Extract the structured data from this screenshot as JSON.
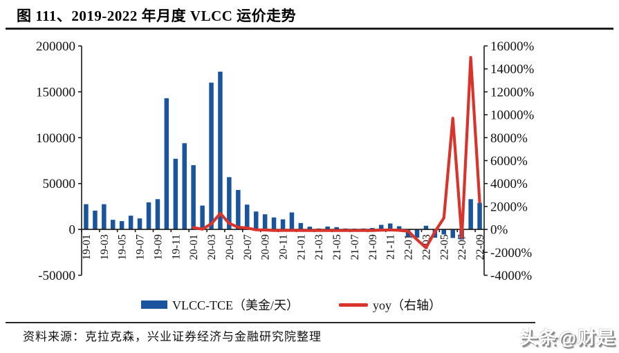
{
  "page": {
    "title": "图 111、2019-2022 年月度 VLCC 运价走势"
  },
  "chart_data": {
    "type": "bar",
    "subtype": "combo-bar-line-dual-axis",
    "title": "图 111、2019-2022 年月度 VLCC 运价走势",
    "grid": "off",
    "legend_position": "bottom",
    "categories": [
      "19-01",
      "19-02",
      "19-03",
      "19-04",
      "19-05",
      "19-06",
      "19-07",
      "19-08",
      "19-09",
      "19-10",
      "19-11",
      "19-12",
      "20-01",
      "20-02",
      "20-03",
      "20-04",
      "20-05",
      "20-06",
      "20-07",
      "20-08",
      "20-09",
      "20-10",
      "20-11",
      "20-12",
      "21-01",
      "21-02",
      "21-03",
      "21-04",
      "21-05",
      "21-06",
      "21-07",
      "21-08",
      "21-09",
      "21-10",
      "21-11",
      "21-12",
      "22-01",
      "22-02",
      "22-03",
      "22-04",
      "22-05",
      "22-06",
      "22-07",
      "22-08",
      "22-09"
    ],
    "x_tick_labels": [
      "19-01",
      "19-03",
      "19-05",
      "19-07",
      "19-09",
      "19-11",
      "20-01",
      "20-03",
      "20-05",
      "20-07",
      "20-09",
      "20-11",
      "21-01",
      "21-03",
      "21-05",
      "21-07",
      "21-09",
      "21-11",
      "22-01",
      "22-03",
      "22-05",
      "22-07",
      "22-09"
    ],
    "left_axis": {
      "min": -50000,
      "max": 200000,
      "step": 50000,
      "tick_labels": [
        "200000",
        "150000",
        "100000",
        "50000",
        "0",
        "-50000"
      ]
    },
    "right_axis": {
      "min": -4000,
      "max": 16000,
      "step": 2000,
      "tick_labels": [
        "16000%",
        "14000%",
        "12000%",
        "10000%",
        "8000%",
        "6000%",
        "4000%",
        "2000%",
        "0%",
        "-2000%",
        "-4000%"
      ]
    },
    "series": [
      {
        "name": "VLCC-TCE（美金/天）",
        "type": "bar",
        "axis": "left",
        "color": "#1a549c",
        "values": [
          27500,
          20500,
          27500,
          10500,
          9000,
          15000,
          12000,
          29500,
          33000,
          143000,
          77000,
          94000,
          70000,
          26000,
          160000,
          172000,
          57000,
          43000,
          27000,
          19500,
          16500,
          13000,
          11000,
          18500,
          7000,
          3000,
          1000,
          3200,
          2500,
          1000,
          800,
          1000,
          1500,
          5000,
          6500,
          3500,
          -8000,
          -9000,
          4000,
          -9000,
          -5500,
          -9300,
          -11000,
          33000,
          29000
        ]
      },
      {
        "name": "yoy（右轴）",
        "type": "line",
        "axis": "right",
        "color": "#d9342c",
        "values": [
          null,
          null,
          null,
          null,
          null,
          null,
          null,
          null,
          null,
          null,
          null,
          null,
          155,
          27,
          482,
          1400,
          533,
          187,
          125,
          -34,
          -50,
          -91,
          -86,
          -80,
          -90,
          -88,
          -99,
          -98,
          -96,
          -98,
          -97,
          -95,
          -91,
          -62,
          -41,
          -81,
          -150,
          -900,
          -1600,
          -200,
          1000,
          9700,
          -700,
          15000,
          2400
        ]
      }
    ]
  },
  "footer": {
    "source": "资料来源：克拉克森，兴业证券经济与金融研究院整理"
  },
  "watermark": {
    "text": "头条@财是"
  }
}
